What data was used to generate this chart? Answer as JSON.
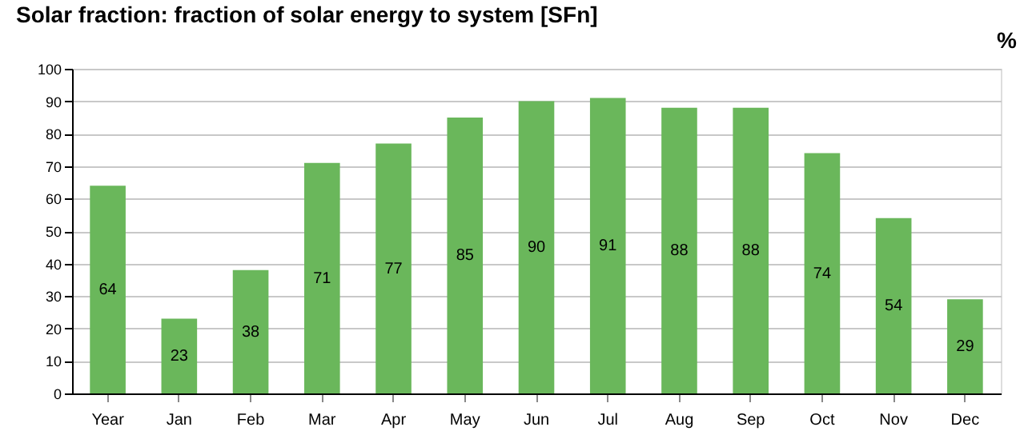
{
  "chart_data": {
    "type": "bar",
    "title": "Solar fraction: fraction of solar energy to system [SFn]",
    "ylabel": "%",
    "categories": [
      "Year",
      "Jan",
      "Feb",
      "Mar",
      "Apr",
      "May",
      "Jun",
      "Jul",
      "Aug",
      "Sep",
      "Oct",
      "Nov",
      "Dec"
    ],
    "values": [
      64,
      23,
      38,
      71,
      77,
      85,
      90,
      91,
      88,
      88,
      74,
      54,
      29
    ],
    "color": "#6ab75b",
    "ylim": [
      0,
      100
    ],
    "yticks": [
      0,
      10,
      20,
      30,
      40,
      50,
      60,
      70,
      80,
      90,
      100
    ],
    "grid": "y",
    "data_labels": true
  }
}
